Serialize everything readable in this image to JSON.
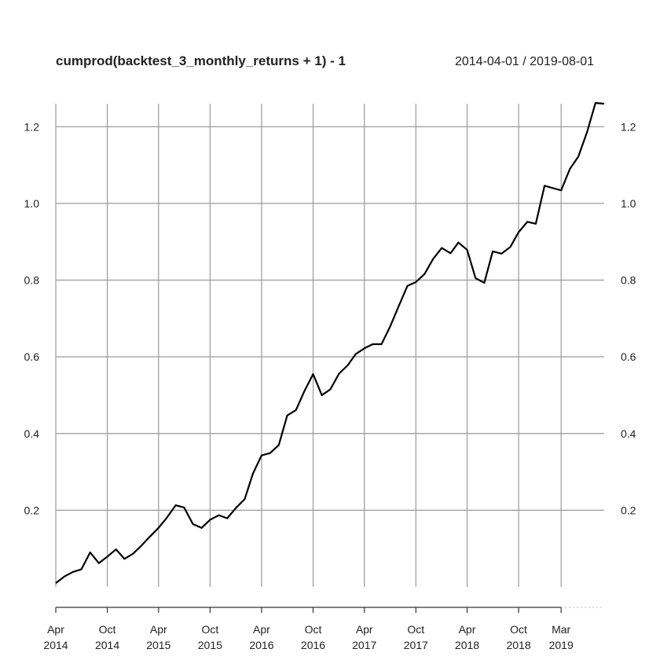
{
  "chart_data": {
    "type": "line",
    "title": "cumprod(backtest_3_monthly_returns + 1) - 1",
    "date_range": "2014-04-01 / 2019-08-01",
    "ylim": [
      0,
      1.26
    ],
    "xlim": [
      "2014-04-01",
      "2019-08-01"
    ],
    "grid": true,
    "y_ticks": [
      {
        "value": 0.2,
        "label": "0.2"
      },
      {
        "value": 0.4,
        "label": "0.4"
      },
      {
        "value": 0.6,
        "label": "0.6"
      },
      {
        "value": 0.8,
        "label": "0.8"
      },
      {
        "value": 1.0,
        "label": "1.0"
      },
      {
        "value": 1.2,
        "label": "1.2"
      }
    ],
    "x_ticks": [
      {
        "date": "2014-04-01",
        "month": "Apr",
        "year": "2014"
      },
      {
        "date": "2014-10-01",
        "month": "Oct",
        "year": "2014"
      },
      {
        "date": "2015-04-01",
        "month": "Apr",
        "year": "2015"
      },
      {
        "date": "2015-10-01",
        "month": "Oct",
        "year": "2015"
      },
      {
        "date": "2016-04-01",
        "month": "Apr",
        "year": "2016"
      },
      {
        "date": "2016-10-01",
        "month": "Oct",
        "year": "2016"
      },
      {
        "date": "2017-04-01",
        "month": "Apr",
        "year": "2017"
      },
      {
        "date": "2017-10-01",
        "month": "Oct",
        "year": "2017"
      },
      {
        "date": "2018-04-01",
        "month": "Apr",
        "year": "2018"
      },
      {
        "date": "2018-10-01",
        "month": "Oct",
        "year": "2018"
      },
      {
        "date": "2019-03-01",
        "month": "Mar",
        "year": "2019"
      }
    ],
    "series": [
      {
        "color": "#000000",
        "points": [
          [
            "2014-04-01",
            0.01
          ],
          [
            "2014-05-01",
            0.027
          ],
          [
            "2014-06-01",
            0.039
          ],
          [
            "2014-07-01",
            0.046
          ],
          [
            "2014-08-01",
            0.09
          ],
          [
            "2014-09-01",
            0.062
          ],
          [
            "2014-10-01",
            0.079
          ],
          [
            "2014-11-01",
            0.098
          ],
          [
            "2014-12-01",
            0.073
          ],
          [
            "2015-01-01",
            0.087
          ],
          [
            "2015-02-01",
            0.109
          ],
          [
            "2015-03-01",
            0.131
          ],
          [
            "2015-04-01",
            0.154
          ],
          [
            "2015-05-01",
            0.181
          ],
          [
            "2015-06-01",
            0.213
          ],
          [
            "2015-07-01",
            0.207
          ],
          [
            "2015-08-01",
            0.164
          ],
          [
            "2015-09-01",
            0.154
          ],
          [
            "2015-10-01",
            0.175
          ],
          [
            "2015-11-01",
            0.187
          ],
          [
            "2015-12-01",
            0.179
          ],
          [
            "2016-01-01",
            0.206
          ],
          [
            "2016-02-01",
            0.229
          ],
          [
            "2016-03-01",
            0.295
          ],
          [
            "2016-04-01",
            0.343
          ],
          [
            "2016-05-01",
            0.349
          ],
          [
            "2016-06-01",
            0.37
          ],
          [
            "2016-07-01",
            0.447
          ],
          [
            "2016-08-01",
            0.461
          ],
          [
            "2016-09-01",
            0.512
          ],
          [
            "2016-10-01",
            0.555
          ],
          [
            "2016-11-01",
            0.5
          ],
          [
            "2016-12-01",
            0.515
          ],
          [
            "2017-01-01",
            0.556
          ],
          [
            "2017-02-01",
            0.578
          ],
          [
            "2017-03-01",
            0.607
          ],
          [
            "2017-04-01",
            0.622
          ],
          [
            "2017-05-01",
            0.633
          ],
          [
            "2017-06-01",
            0.633
          ],
          [
            "2017-07-01",
            0.678
          ],
          [
            "2017-08-01",
            0.732
          ],
          [
            "2017-09-01",
            0.785
          ],
          [
            "2017-10-01",
            0.795
          ],
          [
            "2017-11-01",
            0.816
          ],
          [
            "2017-12-01",
            0.855
          ],
          [
            "2018-01-01",
            0.884
          ],
          [
            "2018-02-01",
            0.87
          ],
          [
            "2018-03-01",
            0.898
          ],
          [
            "2018-04-01",
            0.879
          ],
          [
            "2018-05-01",
            0.805
          ],
          [
            "2018-06-01",
            0.793
          ],
          [
            "2018-07-01",
            0.875
          ],
          [
            "2018-08-01",
            0.869
          ],
          [
            "2018-09-01",
            0.886
          ],
          [
            "2018-10-01",
            0.925
          ],
          [
            "2018-11-01",
            0.952
          ],
          [
            "2018-12-01",
            0.947
          ],
          [
            "2019-01-01",
            1.046
          ],
          [
            "2019-03-01",
            1.034
          ],
          [
            "2019-04-01",
            1.09
          ],
          [
            "2019-05-01",
            1.122
          ],
          [
            "2019-06-01",
            1.186
          ],
          [
            "2019-07-01",
            1.262
          ],
          [
            "2019-08-01",
            1.26
          ]
        ]
      }
    ]
  }
}
